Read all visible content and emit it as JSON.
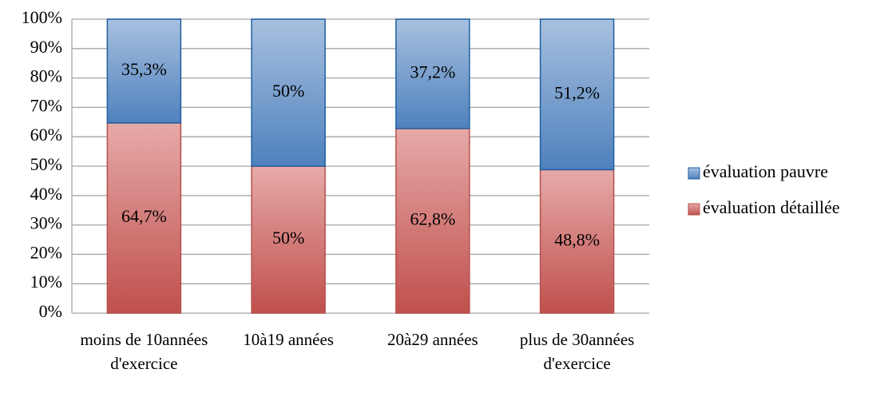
{
  "chart_data": {
    "type": "stacked_bar",
    "categories": [
      "moins de 10années d'exercice",
      "10à19 années",
      "20à29 années",
      "plus de 30années d'exercice"
    ],
    "series": [
      {
        "name": "évaluation détaillée",
        "color": "#c0504d",
        "values": [
          64.7,
          50,
          62.8,
          48.8
        ],
        "value_labels": [
          "64,7%",
          "50%",
          "62,8%",
          "48,8%"
        ]
      },
      {
        "name": "évaluation pauvre",
        "color": "#4f81bd",
        "values": [
          35.3,
          50,
          37.2,
          51.2
        ],
        "value_labels": [
          "35,3%",
          "50%",
          "37,2%",
          "51,2%"
        ]
      }
    ],
    "ylim": [
      0,
      100
    ],
    "yticks": [
      {
        "value": 0,
        "label": "0%"
      },
      {
        "value": 10,
        "label": "10%"
      },
      {
        "value": 20,
        "label": "20%"
      },
      {
        "value": 30,
        "label": "30%"
      },
      {
        "value": 40,
        "label": "40%"
      },
      {
        "value": 50,
        "label": "50%"
      },
      {
        "value": 60,
        "label": "60%"
      },
      {
        "value": 70,
        "label": "70%"
      },
      {
        "value": 80,
        "label": "80%"
      },
      {
        "value": 90,
        "label": "90%"
      },
      {
        "value": 100,
        "label": "100%"
      }
    ],
    "grid": true,
    "legend": "right"
  }
}
